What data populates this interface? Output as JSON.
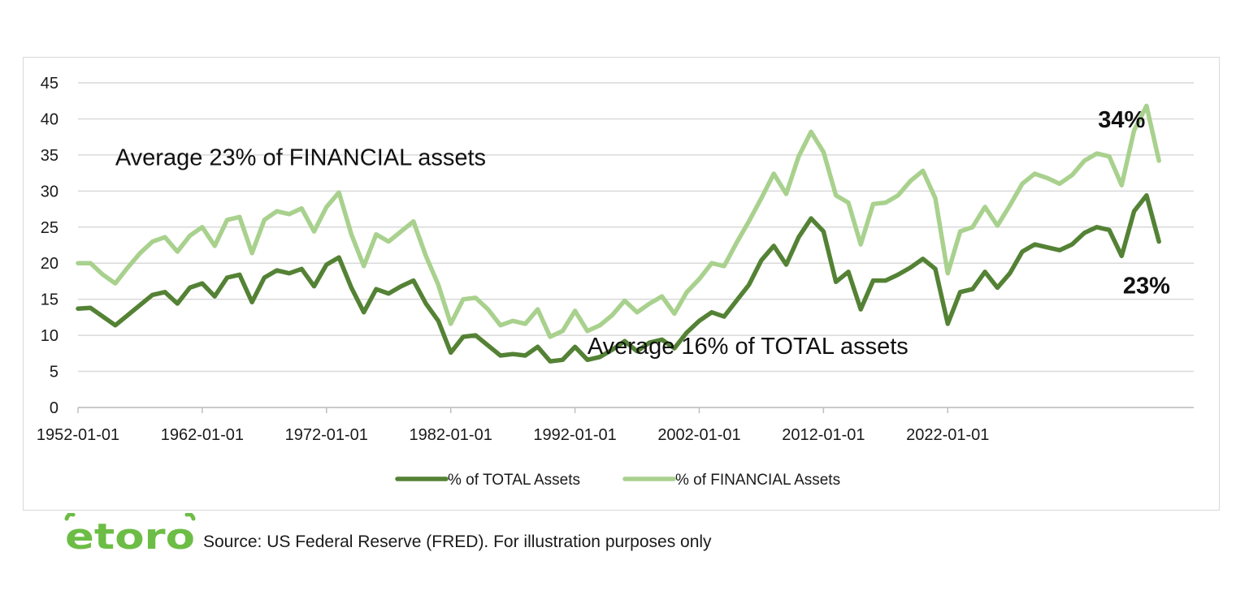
{
  "chart_data": {
    "type": "line",
    "title": "",
    "xlabel": "",
    "ylabel": "",
    "ylim": [
      0,
      45
    ],
    "yticks": [
      "0",
      "5",
      "10",
      "15",
      "20",
      "25",
      "30",
      "35",
      "40",
      "45"
    ],
    "xticks": [
      "1952-01-01",
      "1962-01-01",
      "1972-01-01",
      "1982-01-01",
      "1992-01-01",
      "2002-01-01",
      "2012-01-01",
      "2022-01-01"
    ],
    "grid": "horizontal",
    "legend_position": "bottom",
    "colors": {
      "total": "#548235",
      "financial": "#a9d18e"
    },
    "series": [
      {
        "name": "% of TOTAL Assets",
        "key": "total",
        "points": [
          [
            "1952-01",
            13.7
          ],
          [
            "1953-01",
            13.8
          ],
          [
            "1954-01",
            12.6
          ],
          [
            "1955-01",
            11.4
          ],
          [
            "1956-01",
            12.8
          ],
          [
            "1957-01",
            14.2
          ],
          [
            "1958-01",
            15.6
          ],
          [
            "1959-01",
            16.0
          ],
          [
            "1960-01",
            14.4
          ],
          [
            "1961-01",
            16.6
          ],
          [
            "1962-01",
            17.2
          ],
          [
            "1963-01",
            15.4
          ],
          [
            "1964-01",
            18.0
          ],
          [
            "1965-01",
            18.4
          ],
          [
            "1966-01",
            14.6
          ],
          [
            "1967-01",
            18.0
          ],
          [
            "1968-01",
            19.0
          ],
          [
            "1969-01",
            18.6
          ],
          [
            "1970-01",
            19.2
          ],
          [
            "1971-01",
            16.8
          ],
          [
            "1972-01",
            19.8
          ],
          [
            "1973-01",
            20.8
          ],
          [
            "1974-01",
            16.6
          ],
          [
            "1975-01",
            13.2
          ],
          [
            "1976-01",
            16.4
          ],
          [
            "1977-01",
            15.8
          ],
          [
            "1978-01",
            16.8
          ],
          [
            "1979-01",
            17.6
          ],
          [
            "1980-01",
            14.4
          ],
          [
            "1981-01",
            12.0
          ],
          [
            "1982-01",
            7.6
          ],
          [
            "1983-01",
            9.8
          ],
          [
            "1984-01",
            10.0
          ],
          [
            "1985-01",
            8.6
          ],
          [
            "1986-01",
            7.2
          ],
          [
            "1987-01",
            7.4
          ],
          [
            "1988-01",
            7.2
          ],
          [
            "1989-01",
            8.4
          ],
          [
            "1990-01",
            6.4
          ],
          [
            "1991-01",
            6.6
          ],
          [
            "1992-01",
            8.4
          ],
          [
            "1993-01",
            6.6
          ],
          [
            "1994-01",
            7.0
          ],
          [
            "1995-01",
            8.0
          ],
          [
            "1996-01",
            9.2
          ],
          [
            "1997-01",
            7.8
          ],
          [
            "1998-01",
            9.0
          ],
          [
            "1999-01",
            9.4
          ],
          [
            "2000-01",
            8.2
          ],
          [
            "2001-01",
            10.4
          ],
          [
            "2002-01",
            12.0
          ],
          [
            "2003-01",
            13.2
          ],
          [
            "2004-01",
            12.6
          ],
          [
            "2005-01",
            14.8
          ],
          [
            "2006-01",
            17.0
          ],
          [
            "2007-01",
            20.4
          ],
          [
            "2008-01",
            22.4
          ],
          [
            "2009-01",
            19.8
          ],
          [
            "2010-01",
            23.6
          ],
          [
            "2011-01",
            26.2
          ],
          [
            "2012-01",
            24.4
          ],
          [
            "2013-01",
            17.4
          ],
          [
            "2014-01",
            18.8
          ],
          [
            "2015-01",
            13.6
          ],
          [
            "2016-01",
            17.6
          ],
          [
            "2017-01",
            17.6
          ],
          [
            "2018-01",
            18.4
          ],
          [
            "2019-01",
            19.4
          ],
          [
            "2020-01",
            20.6
          ],
          [
            "2021-01",
            19.2
          ],
          [
            "2022-01",
            11.6
          ],
          [
            "2023-01",
            16.0
          ],
          [
            "2024-01",
            16.4
          ],
          [
            "2025-01",
            18.8
          ],
          [
            "2026-01",
            16.6
          ],
          [
            "2027-01",
            18.6
          ],
          [
            "2028-01",
            21.6
          ],
          [
            "2029-01",
            22.6
          ],
          [
            "2030-01",
            22.2
          ],
          [
            "2031-01",
            21.8
          ],
          [
            "2032-01",
            22.6
          ],
          [
            "2033-01",
            24.2
          ],
          [
            "2034-01",
            25.0
          ],
          [
            "2035-01",
            24.6
          ],
          [
            "2036-01",
            21.0
          ],
          [
            "2037-01",
            27.2
          ],
          [
            "2038-01",
            29.4
          ],
          [
            "2039-01",
            23.0
          ]
        ]
      },
      {
        "name": "% of FINANCIAL Assets",
        "key": "financial",
        "points": [
          [
            "1952-01",
            20.0
          ],
          [
            "1953-01",
            20.0
          ],
          [
            "1954-01",
            18.4
          ],
          [
            "1955-01",
            17.2
          ],
          [
            "1956-01",
            19.4
          ],
          [
            "1957-01",
            21.4
          ],
          [
            "1958-01",
            23.0
          ],
          [
            "1959-01",
            23.6
          ],
          [
            "1960-01",
            21.6
          ],
          [
            "1961-01",
            23.8
          ],
          [
            "1962-01",
            25.0
          ],
          [
            "1963-01",
            22.4
          ],
          [
            "1964-01",
            26.0
          ],
          [
            "1965-01",
            26.4
          ],
          [
            "1966-01",
            21.4
          ],
          [
            "1967-01",
            26.0
          ],
          [
            "1968-01",
            27.2
          ],
          [
            "1969-01",
            26.8
          ],
          [
            "1970-01",
            27.6
          ],
          [
            "1971-01",
            24.4
          ],
          [
            "1972-01",
            27.8
          ],
          [
            "1973-01",
            29.8
          ],
          [
            "1974-01",
            24.0
          ],
          [
            "1975-01",
            19.6
          ],
          [
            "1976-01",
            24.0
          ],
          [
            "1977-01",
            23.0
          ],
          [
            "1978-01",
            24.4
          ],
          [
            "1979-01",
            25.8
          ],
          [
            "1980-01",
            21.0
          ],
          [
            "1981-01",
            17.0
          ],
          [
            "1982-01",
            11.6
          ],
          [
            "1983-01",
            15.0
          ],
          [
            "1984-01",
            15.2
          ],
          [
            "1985-01",
            13.6
          ],
          [
            "1986-01",
            11.4
          ],
          [
            "1987-01",
            12.0
          ],
          [
            "1988-01",
            11.6
          ],
          [
            "1989-01",
            13.6
          ],
          [
            "1990-01",
            9.8
          ],
          [
            "1991-01",
            10.6
          ],
          [
            "1992-01",
            13.4
          ],
          [
            "1993-01",
            10.6
          ],
          [
            "1994-01",
            11.4
          ],
          [
            "1995-01",
            12.8
          ],
          [
            "1996-01",
            14.8
          ],
          [
            "1997-01",
            13.2
          ],
          [
            "1998-01",
            14.4
          ],
          [
            "1999-01",
            15.4
          ],
          [
            "2000-01",
            13.0
          ],
          [
            "2001-01",
            16.0
          ],
          [
            "2002-01",
            17.8
          ],
          [
            "2003-01",
            20.0
          ],
          [
            "2004-01",
            19.6
          ],
          [
            "2005-01",
            22.8
          ],
          [
            "2006-01",
            25.8
          ],
          [
            "2007-01",
            29.0
          ],
          [
            "2008-01",
            32.4
          ],
          [
            "2009-01",
            29.6
          ],
          [
            "2010-01",
            34.8
          ],
          [
            "2011-01",
            38.2
          ],
          [
            "2012-01",
            35.4
          ],
          [
            "2013-01",
            29.4
          ],
          [
            "2014-01",
            28.4
          ],
          [
            "2015-01",
            22.6
          ],
          [
            "2016-01",
            28.2
          ],
          [
            "2017-01",
            28.4
          ],
          [
            "2018-01",
            29.4
          ],
          [
            "2019-01",
            31.4
          ],
          [
            "2020-01",
            32.8
          ],
          [
            "2021-01",
            29.0
          ],
          [
            "2022-01",
            18.6
          ],
          [
            "2023-01",
            24.4
          ],
          [
            "2024-01",
            25.0
          ],
          [
            "2025-01",
            27.8
          ],
          [
            "2026-01",
            25.2
          ],
          [
            "2027-01",
            28.0
          ],
          [
            "2028-01",
            31.0
          ],
          [
            "2029-01",
            32.4
          ],
          [
            "2030-01",
            31.8
          ],
          [
            "2031-01",
            31.0
          ],
          [
            "2032-01",
            32.2
          ],
          [
            "2033-01",
            34.2
          ],
          [
            "2034-01",
            35.2
          ],
          [
            "2035-01",
            34.8
          ],
          [
            "2036-01",
            30.8
          ],
          [
            "2037-01",
            38.4
          ],
          [
            "2038-01",
            41.8
          ],
          [
            "2039-01",
            34.2
          ]
        ]
      }
    ],
    "annotations": [
      {
        "key": "avg_financial",
        "text": "Average 23% of FINANCIAL assets",
        "at": [
          "1955-01",
          33.6
        ],
        "anchor": "start",
        "weight": "normal"
      },
      {
        "key": "avg_total",
        "text": "Average 16% of TOTAL assets",
        "at": [
          "1993-01",
          7.4
        ],
        "anchor": "start",
        "weight": "normal"
      },
      {
        "key": "label_34",
        "text": "34%",
        "at": [
          "2036-01",
          38.8
        ],
        "anchor": "middle",
        "weight": "bold"
      },
      {
        "key": "label_23",
        "text": "23%",
        "at": [
          "2038-01",
          15.8
        ],
        "anchor": "middle",
        "weight": "bold"
      }
    ]
  },
  "footer": {
    "logo_text": "etoro",
    "source": "Source: US Federal Reserve (FRED). For illustration purposes only"
  }
}
